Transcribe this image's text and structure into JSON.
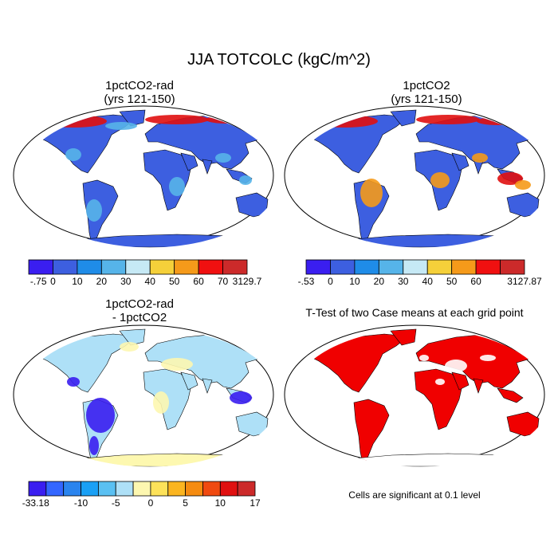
{
  "title": "JJA TOTCOLC (kgC/m^2)",
  "panels": [
    {
      "title_line1": "1pctCO2-rad",
      "title_line2": "(yrs 121-150)"
    },
    {
      "title_line1": "1pctCO2",
      "title_line2": "(yrs 121-150)"
    },
    {
      "title_line1": "1pctCO2-rad",
      "title_line2": "- 1pctCO2"
    },
    {
      "title_line1": "T-Test of two Case means at each grid point",
      "title_line2": ""
    }
  ],
  "colorbars": [
    {
      "labels": [
        "-.75",
        "0",
        "10",
        "20",
        "30",
        "40",
        "50",
        "60",
        "70",
        "3129.7"
      ],
      "colors": [
        "#3a1ef0",
        "#3d5fe0",
        "#1f8ce8",
        "#56b4e9",
        "#c6e9f5",
        "#f5d03a",
        "#f59a1a",
        "#f01010",
        "#cc2a2a"
      ]
    },
    {
      "labels": [
        "-.53",
        "0",
        "10",
        "20",
        "30",
        "40",
        "50",
        "60",
        "3127.87"
      ],
      "colors": [
        "#3a1ef0",
        "#3d5fe0",
        "#1f8ce8",
        "#56b4e9",
        "#c6e9f5",
        "#f5d03a",
        "#f59a1a",
        "#f01010",
        "#cc2a2a"
      ]
    },
    {
      "labels": [
        "-33.18",
        "-10",
        "-5",
        "0",
        "5",
        "10",
        "17"
      ],
      "colors": [
        "#3a1ef0",
        "#3366ff",
        "#2a84ee",
        "#1aa0f5",
        "#5ac0f2",
        "#aee0f7",
        "#fdf7b0",
        "#fde25a",
        "#fbb520",
        "#f58b10",
        "#f04a10",
        "#e01010",
        "#cc2a2a"
      ]
    }
  ],
  "maps": [
    {
      "land_color": "#3d5fe0",
      "high_color": "#e01010",
      "mid_color": "#56b4e9",
      "ocean_color": "#ffffff"
    },
    {
      "land_color": "#3d5fe0",
      "high_color": "#e01010",
      "mid_color": "#f59a1a",
      "ocean_color": "#ffffff"
    },
    {
      "land_color": "#aee0f7",
      "high_color": "#fdf7b0",
      "mid_color": "#3a1ef0",
      "ocean_color": "#ffffff"
    },
    {
      "land_color": "#f00000",
      "high_color": "#f00000",
      "mid_color": "#ffffff",
      "ocean_color": "#ffffff"
    }
  ],
  "footnote": "Cells are significant at 0.1 level"
}
